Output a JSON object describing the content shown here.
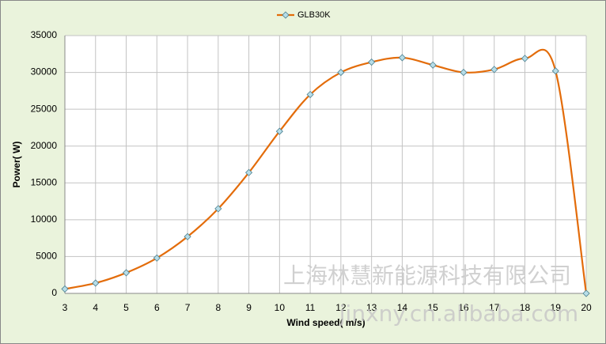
{
  "chart_data": {
    "type": "line",
    "legend_position": "top",
    "x_label": "Wind speed( m/s)",
    "y_label": "Power( W)",
    "x": [
      3,
      4,
      5,
      6,
      7,
      8,
      9,
      10,
      11,
      12,
      13,
      14,
      15,
      16,
      17,
      18,
      19,
      20
    ],
    "series": [
      {
        "name": "GLB30K",
        "color": "#e36c0a",
        "marker_color": "#b7dde8",
        "values": [
          600,
          1400,
          2800,
          4800,
          7700,
          11500,
          16400,
          22000,
          27000,
          30000,
          31400,
          32000,
          31000,
          30000,
          30400,
          31900,
          30200,
          0
        ]
      }
    ],
    "xlim": [
      3,
      20
    ],
    "xticks": [
      3,
      4,
      5,
      6,
      7,
      8,
      9,
      10,
      11,
      12,
      13,
      14,
      15,
      16,
      17,
      18,
      19,
      20
    ],
    "ylim": [
      0,
      35000
    ],
    "yticks": [
      0,
      5000,
      10000,
      15000,
      20000,
      25000,
      30000,
      35000
    ],
    "grid": true,
    "smooth": true,
    "watermarks": [
      "上海林慧新能源科技有限公司",
      "jinxny.cn.alibaba.com"
    ]
  }
}
